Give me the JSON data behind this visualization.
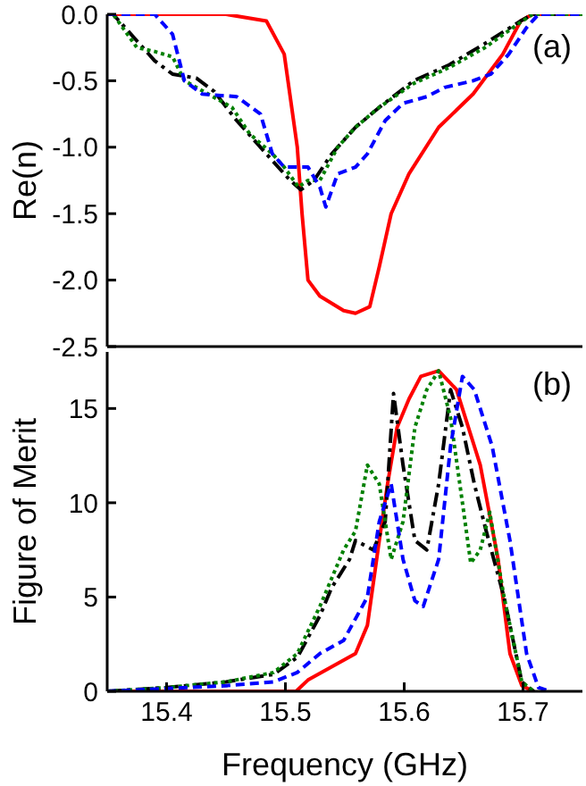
{
  "chart_data": [
    {
      "type": "line",
      "ylabel": "Re(n)",
      "annotations": [
        "(a)"
      ],
      "xlim": [
        15.35,
        15.75
      ],
      "xticks": [
        15.4,
        15.5,
        15.6,
        15.7
      ],
      "ylim": [
        -2.5,
        0
      ],
      "yticks": [
        {
          "value": 0,
          "label": "0.0"
        },
        {
          "value": -0.5,
          "label": "-0.5"
        },
        {
          "value": -1,
          "label": "-1.0"
        },
        {
          "value": -1.5,
          "label": "-1.5"
        },
        {
          "value": -2,
          "label": "-2.0"
        },
        {
          "value": -2.5,
          "label": "-2.5"
        }
      ],
      "tick_labels": "y",
      "grid": false,
      "legend": false,
      "marker": "none",
      "series": [
        {
          "color": "#ff0000",
          "line_style": "solid",
          "x": [
            15.35,
            15.45,
            15.484,
            15.499,
            15.51,
            15.514,
            15.519,
            15.529,
            15.549,
            15.559,
            15.571,
            15.579,
            15.589,
            15.604,
            15.629,
            15.658,
            15.683,
            15.698,
            15.708,
            15.75
          ],
          "values": [
            0,
            0,
            -0.05,
            -0.3,
            -1.0,
            -1.5,
            -2.0,
            -2.12,
            -2.23,
            -2.25,
            -2.2,
            -1.9,
            -1.5,
            -1.2,
            -0.85,
            -0.6,
            -0.3,
            -0.05,
            0,
            0
          ]
        },
        {
          "color": "#000000",
          "line_style": "dashdot",
          "x": [
            15.35,
            15.355,
            15.375,
            15.39,
            15.405,
            15.425,
            15.44,
            15.459,
            15.474,
            15.489,
            15.504,
            15.513,
            15.524,
            15.539,
            15.559,
            15.579,
            15.608,
            15.638,
            15.668,
            15.698,
            15.708,
            15.75
          ],
          "values": [
            0,
            0,
            -0.2,
            -0.35,
            -0.45,
            -0.48,
            -0.58,
            -0.8,
            -0.95,
            -1.1,
            -1.25,
            -1.32,
            -1.25,
            -1.05,
            -0.85,
            -0.7,
            -0.5,
            -0.38,
            -0.22,
            -0.05,
            0,
            0
          ]
        },
        {
          "color": "#008000",
          "line_style": "dotted",
          "x": [
            15.35,
            15.355,
            15.375,
            15.39,
            15.405,
            15.415,
            15.435,
            15.455,
            15.47,
            15.489,
            15.499,
            15.511,
            15.519,
            15.529,
            15.544,
            15.559,
            15.579,
            15.608,
            15.638,
            15.668,
            15.698,
            15.708,
            15.75
          ],
          "values": [
            0,
            0,
            -0.25,
            -0.28,
            -0.32,
            -0.5,
            -0.6,
            -0.7,
            -0.9,
            -1.05,
            -1.15,
            -1.3,
            -1.25,
            -1.25,
            -1.0,
            -0.85,
            -0.7,
            -0.52,
            -0.4,
            -0.25,
            -0.06,
            0,
            0
          ]
        },
        {
          "color": "#0000ff",
          "line_style": "dashed",
          "x": [
            15.35,
            15.39,
            15.405,
            15.415,
            15.43,
            15.459,
            15.479,
            15.489,
            15.499,
            15.519,
            15.529,
            15.534,
            15.544,
            15.559,
            15.569,
            15.584,
            15.599,
            15.619,
            15.634,
            15.658,
            15.673,
            15.688,
            15.703,
            15.713,
            15.75
          ],
          "values": [
            0,
            0,
            -0.15,
            -0.5,
            -0.6,
            -0.62,
            -0.75,
            -1.05,
            -1.15,
            -1.15,
            -1.3,
            -1.45,
            -1.2,
            -1.15,
            -1.05,
            -0.8,
            -0.67,
            -0.62,
            -0.55,
            -0.5,
            -0.45,
            -0.3,
            -0.1,
            0,
            0
          ]
        }
      ]
    },
    {
      "type": "line",
      "xlabel": "Frequency (GHz)",
      "ylabel": "Figure of Merit",
      "annotations": [
        "(b)"
      ],
      "xlim": [
        15.35,
        15.75
      ],
      "xticks": [
        15.4,
        15.5,
        15.6,
        15.7
      ],
      "ylim": [
        0,
        18
      ],
      "yticks": [
        0,
        5,
        10,
        15
      ],
      "grid": false,
      "legend": false,
      "marker": "none",
      "series": [
        {
          "color": "#ff0000",
          "line_style": "solid",
          "x": [
            15.35,
            15.509,
            15.519,
            15.539,
            15.559,
            15.569,
            15.579,
            15.586,
            15.594,
            15.604,
            15.614,
            15.629,
            15.644,
            15.654,
            15.664,
            15.679,
            15.689,
            15.699,
            15.709
          ],
          "values": [
            0,
            0,
            0.6,
            1.3,
            2.0,
            3.5,
            8,
            11,
            14,
            15.5,
            16.7,
            17,
            16,
            14,
            12,
            7,
            2,
            0.3,
            0
          ]
        },
        {
          "color": "#000000",
          "line_style": "dashdot",
          "x": [
            15.35,
            15.4,
            15.45,
            15.49,
            15.51,
            15.529,
            15.539,
            15.554,
            15.559,
            15.574,
            15.584,
            15.591,
            15.599,
            15.609,
            15.619,
            15.629,
            15.639,
            15.649,
            15.659,
            15.669,
            15.684,
            15.699,
            15.709
          ],
          "values": [
            0,
            0.2,
            0.5,
            0.9,
            1.8,
            4,
            5.5,
            7,
            8,
            7.5,
            9,
            15.8,
            12,
            8,
            7.5,
            11,
            16,
            14,
            11,
            8.5,
            5,
            0.5,
            0
          ]
        },
        {
          "color": "#008000",
          "line_style": "dotted",
          "x": [
            15.35,
            15.4,
            15.45,
            15.49,
            15.51,
            15.529,
            15.539,
            15.549,
            15.559,
            15.569,
            15.579,
            15.589,
            15.599,
            15.609,
            15.619,
            15.629,
            15.639,
            15.649,
            15.656,
            15.664,
            15.672,
            15.684,
            15.699,
            15.709
          ],
          "values": [
            0,
            0.2,
            0.5,
            1.0,
            2.0,
            4.5,
            6,
            7.5,
            8.5,
            12,
            11,
            7,
            9,
            14,
            16,
            17,
            14.5,
            10,
            6.8,
            7.5,
            9.5,
            5,
            0.5,
            0
          ]
        },
        {
          "color": "#0000ff",
          "line_style": "dashed",
          "x": [
            15.35,
            15.45,
            15.49,
            15.51,
            15.529,
            15.549,
            15.569,
            15.579,
            15.589,
            15.599,
            15.609,
            15.616,
            15.629,
            15.639,
            15.649,
            15.659,
            15.674,
            15.689,
            15.703,
            15.713,
            15.723
          ],
          "values": [
            0,
            0.3,
            0.5,
            1.0,
            2.0,
            2.7,
            5,
            9,
            11,
            7,
            4.8,
            4.5,
            7,
            13,
            16.7,
            16,
            13,
            8,
            2,
            0.2,
            0
          ]
        }
      ]
    }
  ]
}
